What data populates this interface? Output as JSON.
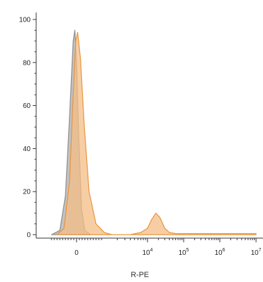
{
  "chart_data": {
    "type": "area",
    "title": "",
    "xlabel": "R-PE",
    "ylabel": "",
    "ylim": [
      0,
      100
    ],
    "y_ticks": [
      0,
      20,
      40,
      60,
      80,
      100
    ],
    "x_scale": "biexponential",
    "x_ticks": [
      {
        "base": "0",
        "exp": ""
      },
      {
        "base": "10",
        "exp": "4"
      },
      {
        "base": "10",
        "exp": "5"
      },
      {
        "base": "10",
        "exp": "6"
      },
      {
        "base": "10",
        "exp": "7"
      }
    ],
    "grid": false,
    "legend": "none",
    "series": [
      {
        "fill": "#b7b7b7",
        "stroke": "#8e8e8e",
        "points": [
          {
            "x": -900,
            "y": 0
          },
          {
            "x": -600,
            "y": 2
          },
          {
            "x": -400,
            "y": 18
          },
          {
            "x": -250,
            "y": 55
          },
          {
            "x": -120,
            "y": 90
          },
          {
            "x": -60,
            "y": 95
          },
          {
            "x": 0,
            "y": 80
          },
          {
            "x": 80,
            "y": 45
          },
          {
            "x": 180,
            "y": 12
          },
          {
            "x": 300,
            "y": 2
          },
          {
            "x": 500,
            "y": 0
          }
        ]
      },
      {
        "fill": "#f4bd85",
        "stroke": "#e8943a",
        "points": [
          {
            "x": -700,
            "y": 0
          },
          {
            "x": -450,
            "y": 3
          },
          {
            "x": -250,
            "y": 25
          },
          {
            "x": -120,
            "y": 65
          },
          {
            "x": -30,
            "y": 90
          },
          {
            "x": 40,
            "y": 94
          },
          {
            "x": 140,
            "y": 82
          },
          {
            "x": 280,
            "y": 50
          },
          {
            "x": 450,
            "y": 20
          },
          {
            "x": 700,
            "y": 5
          },
          {
            "x": 1000,
            "y": 1
          },
          {
            "x": 1500,
            "y": 0
          },
          {
            "x": 4000,
            "y": 0
          },
          {
            "x": 7000,
            "y": 1
          },
          {
            "x": 10000,
            "y": 3
          },
          {
            "x": 13000,
            "y": 7
          },
          {
            "x": 17000,
            "y": 10
          },
          {
            "x": 22000,
            "y": 8
          },
          {
            "x": 30000,
            "y": 3
          },
          {
            "x": 40000,
            "y": 1
          },
          {
            "x": 60000,
            "y": 0.5
          },
          {
            "x": 100000,
            "y": 0.5
          },
          {
            "x": 1000000,
            "y": 0.5
          },
          {
            "x": 10000000,
            "y": 0.5
          }
        ]
      }
    ]
  }
}
